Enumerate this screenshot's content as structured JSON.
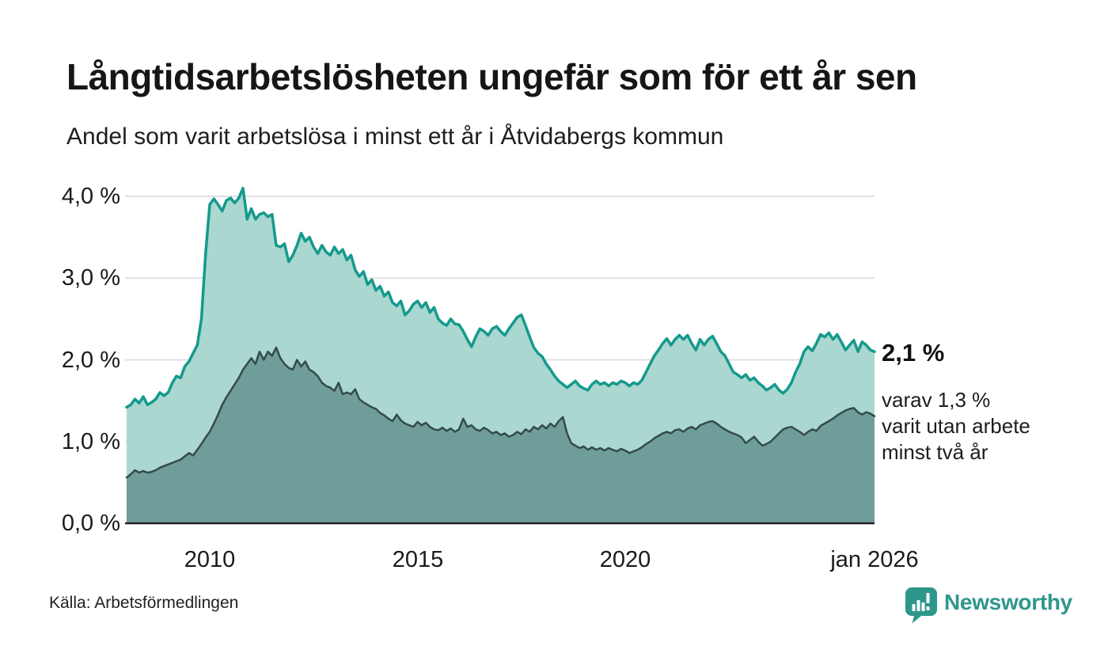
{
  "header": {
    "title": "Långtidsarbetslösheten ungefär som för ett år sen",
    "subtitle": "Andel som varit arbetslösa i minst ett år i Åtvidabergs kommun"
  },
  "annotations": {
    "latest_value": "2,1 %",
    "secondary": "varav 1,3 %\nvarit utan arbete\nminst två år"
  },
  "footer": {
    "source": "Källa: Arbetsförmedlingen",
    "brand": "Newsworthy"
  },
  "colors": {
    "series1_line": "#149a8c",
    "series1_fill": "#aad7d0",
    "series2_line": "#344b49",
    "series2_fill": "#6f9e9a",
    "gridline": "#dfdfe5",
    "baseline": "#222222",
    "brand_teal": "#2e978b",
    "text": "#1a1a1a"
  },
  "chart_data": {
    "type": "area",
    "title": "Långtidsarbetslösheten ungefär som för ett år sen",
    "subtitle": "Andel som varit arbetslösa i minst ett år i Åtvidabergs kommun",
    "x_start": 2008.0,
    "x_step_years": 0.1,
    "x_end": 2026.0,
    "ylim": [
      0,
      4.3
    ],
    "grid": true,
    "legend": "none",
    "unit": "%",
    "y_ticks": [
      {
        "label": "0,0 %",
        "v": 0
      },
      {
        "label": "1,0 %",
        "v": 1
      },
      {
        "label": "2,0 %",
        "v": 2
      },
      {
        "label": "3,0 %",
        "v": 3
      },
      {
        "label": "4,0 %",
        "v": 4
      }
    ],
    "x_ticks": [
      {
        "label": "2010",
        "year": 2010
      },
      {
        "label": "2015",
        "year": 2015
      },
      {
        "label": "2020",
        "year": 2020
      },
      {
        "label": "jan 2026",
        "year": 2026
      }
    ],
    "series": [
      {
        "name": "Arbetslösa minst ett år",
        "end_label": "2,1 %",
        "end_value": 2.1,
        "values": [
          1.42,
          1.45,
          1.52,
          1.47,
          1.55,
          1.45,
          1.48,
          1.52,
          1.6,
          1.56,
          1.6,
          1.72,
          1.8,
          1.78,
          1.92,
          1.98,
          2.08,
          2.18,
          2.5,
          3.3,
          3.9,
          3.97,
          3.9,
          3.82,
          3.95,
          3.98,
          3.92,
          3.98,
          4.1,
          3.72,
          3.85,
          3.72,
          3.78,
          3.8,
          3.75,
          3.78,
          3.4,
          3.38,
          3.42,
          3.2,
          3.28,
          3.4,
          3.55,
          3.45,
          3.5,
          3.38,
          3.3,
          3.4,
          3.32,
          3.28,
          3.38,
          3.3,
          3.35,
          3.22,
          3.28,
          3.1,
          3.02,
          3.08,
          2.92,
          2.98,
          2.85,
          2.9,
          2.78,
          2.83,
          2.7,
          2.66,
          2.72,
          2.55,
          2.6,
          2.68,
          2.72,
          2.64,
          2.7,
          2.58,
          2.64,
          2.5,
          2.45,
          2.42,
          2.5,
          2.44,
          2.43,
          2.35,
          2.25,
          2.16,
          2.28,
          2.38,
          2.35,
          2.3,
          2.38,
          2.41,
          2.35,
          2.3,
          2.38,
          2.45,
          2.52,
          2.55,
          2.42,
          2.28,
          2.15,
          2.08,
          2.04,
          1.95,
          1.88,
          1.8,
          1.74,
          1.7,
          1.66,
          1.7,
          1.74,
          1.68,
          1.65,
          1.63,
          1.7,
          1.74,
          1.7,
          1.72,
          1.68,
          1.72,
          1.7,
          1.74,
          1.72,
          1.68,
          1.72,
          1.7,
          1.75,
          1.85,
          1.95,
          2.05,
          2.12,
          2.2,
          2.26,
          2.18,
          2.25,
          2.3,
          2.25,
          2.3,
          2.2,
          2.12,
          2.25,
          2.18,
          2.25,
          2.29,
          2.2,
          2.1,
          2.05,
          1.95,
          1.85,
          1.82,
          1.78,
          1.82,
          1.75,
          1.78,
          1.72,
          1.68,
          1.63,
          1.66,
          1.7,
          1.63,
          1.59,
          1.64,
          1.72,
          1.85,
          1.95,
          2.1,
          2.16,
          2.11,
          2.2,
          2.31,
          2.28,
          2.33,
          2.25,
          2.31,
          2.22,
          2.12,
          2.18,
          2.24,
          2.1,
          2.22,
          2.18,
          2.12,
          2.1
        ]
      },
      {
        "name": "varav arbetslösa minst två år",
        "end_label": "varav 1,3 % varit utan arbete minst två år",
        "end_value": 1.3,
        "values": [
          0.56,
          0.6,
          0.65,
          0.62,
          0.64,
          0.62,
          0.63,
          0.65,
          0.68,
          0.7,
          0.72,
          0.74,
          0.76,
          0.78,
          0.82,
          0.86,
          0.83,
          0.9,
          0.97,
          1.05,
          1.12,
          1.22,
          1.33,
          1.45,
          1.54,
          1.62,
          1.7,
          1.78,
          1.88,
          1.95,
          2.02,
          1.95,
          2.1,
          2.0,
          2.1,
          2.05,
          2.15,
          2.02,
          1.95,
          1.9,
          1.88,
          2.0,
          1.92,
          1.98,
          1.88,
          1.85,
          1.8,
          1.72,
          1.68,
          1.66,
          1.62,
          1.72,
          1.58,
          1.6,
          1.58,
          1.64,
          1.52,
          1.48,
          1.45,
          1.42,
          1.4,
          1.35,
          1.32,
          1.28,
          1.25,
          1.33,
          1.26,
          1.22,
          1.2,
          1.18,
          1.24,
          1.2,
          1.23,
          1.18,
          1.15,
          1.14,
          1.17,
          1.13,
          1.16,
          1.12,
          1.15,
          1.28,
          1.18,
          1.2,
          1.15,
          1.13,
          1.17,
          1.14,
          1.1,
          1.12,
          1.08,
          1.1,
          1.06,
          1.08,
          1.12,
          1.09,
          1.15,
          1.12,
          1.18,
          1.15,
          1.2,
          1.16,
          1.22,
          1.18,
          1.25,
          1.3,
          1.1,
          0.98,
          0.95,
          0.92,
          0.94,
          0.9,
          0.93,
          0.9,
          0.92,
          0.89,
          0.92,
          0.9,
          0.88,
          0.91,
          0.89,
          0.86,
          0.88,
          0.9,
          0.93,
          0.97,
          1.0,
          1.04,
          1.07,
          1.1,
          1.12,
          1.1,
          1.14,
          1.15,
          1.12,
          1.16,
          1.18,
          1.15,
          1.2,
          1.22,
          1.24,
          1.25,
          1.22,
          1.18,
          1.15,
          1.12,
          1.1,
          1.08,
          1.05,
          0.98,
          1.02,
          1.06,
          1.0,
          0.95,
          0.97,
          1.0,
          1.05,
          1.1,
          1.15,
          1.17,
          1.18,
          1.15,
          1.12,
          1.08,
          1.12,
          1.15,
          1.13,
          1.19,
          1.22,
          1.25,
          1.28,
          1.32,
          1.35,
          1.38,
          1.4,
          1.41,
          1.36,
          1.33,
          1.36,
          1.34,
          1.31
        ]
      }
    ]
  }
}
